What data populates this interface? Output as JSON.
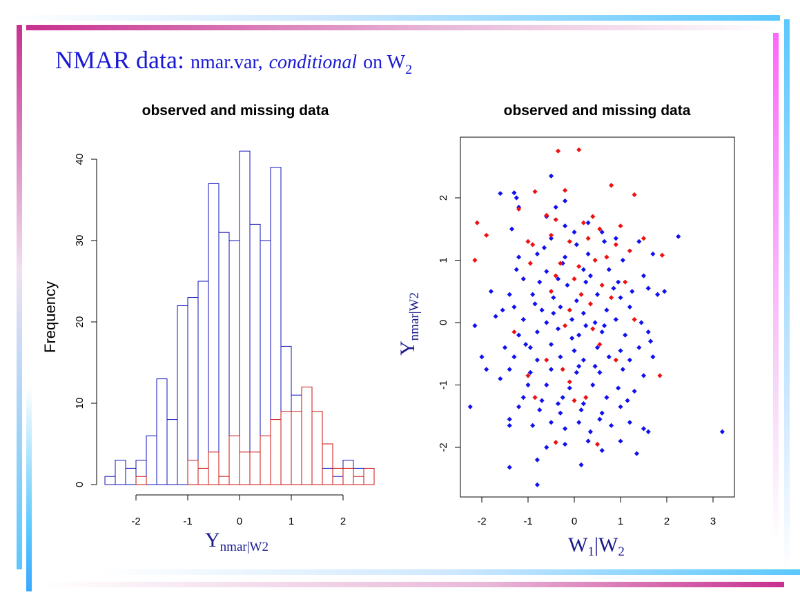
{
  "slide": {
    "title_main": "NMAR data:",
    "title_var": "nmar.var,",
    "title_cond": "conditional",
    "title_on": "on W",
    "title_sub": "2"
  },
  "colors": {
    "observed": "#1111bb",
    "missing": "#cc1111",
    "title": "#1a1ad6"
  },
  "chart_data": [
    {
      "type": "bar",
      "subtype": "histogram",
      "title": "observed and missing data",
      "ylabel": "Frequency",
      "xlabel_main": "Y",
      "xlabel_sub": "nmar|W2",
      "bin_width": 0.2,
      "xlim": [
        -2.6,
        2.6
      ],
      "ylim": [
        0,
        40
      ],
      "x_ticks": [
        "-2",
        "-1",
        "0",
        "1",
        "2"
      ],
      "y_ticks": [
        "0",
        "10",
        "20",
        "30",
        "40"
      ],
      "series": [
        {
          "name": "observed",
          "color": "#1111bb",
          "bin_starts": [
            -2.6,
            -2.4,
            -2.2,
            -2.0,
            -1.8,
            -1.6,
            -1.4,
            -1.2,
            -1.0,
            -0.8,
            -0.6,
            -0.4,
            -0.2,
            0.0,
            0.2,
            0.4,
            0.6,
            0.8,
            1.0,
            1.6,
            1.8,
            2.0,
            2.2
          ],
          "values": [
            1,
            3,
            2,
            3,
            6,
            13,
            8,
            22,
            23,
            25,
            37,
            31,
            30,
            41,
            32,
            30,
            39,
            17,
            11,
            2,
            1,
            3,
            2
          ]
        },
        {
          "name": "missing",
          "color": "#cc1111",
          "bin_starts": [
            -2.0,
            -1.0,
            -0.8,
            -0.6,
            -0.4,
            -0.2,
            0.0,
            0.2,
            0.4,
            0.6,
            0.8,
            1.0,
            1.2,
            1.4,
            1.6,
            1.8,
            2.0,
            2.2,
            2.4
          ],
          "values": [
            1,
            3,
            2,
            4,
            1,
            6,
            4,
            4,
            6,
            8,
            9,
            9,
            12,
            9,
            5,
            2,
            2,
            1,
            2
          ]
        }
      ]
    },
    {
      "type": "scatter",
      "title": "observed and missing data",
      "xlabel_main": "W",
      "xlabel_sub1": "1",
      "xlabel_bar": "|W",
      "xlabel_sub2": "2",
      "ylabel_main": "Y",
      "ylabel_sub": "nmar|W2",
      "xlim": [
        -2.5,
        3.5
      ],
      "ylim": [
        -2.8,
        2.9
      ],
      "x_ticks": [
        "-2",
        "-1",
        "0",
        "1",
        "2",
        "3"
      ],
      "y_ticks": [
        "-2",
        "-1",
        "0",
        "1",
        "2"
      ],
      "series": [
        {
          "name": "missing",
          "color": "#ee1111",
          "points": [
            [
              -0.35,
              2.75
            ],
            [
              0.1,
              2.77
            ],
            [
              -0.85,
              2.1
            ],
            [
              0.8,
              2.2
            ],
            [
              -0.2,
              2.12
            ],
            [
              1.3,
              2.05
            ],
            [
              -2.1,
              1.6
            ],
            [
              -1.9,
              1.4
            ],
            [
              -2.15,
              1.0
            ],
            [
              -1.2,
              1.82
            ],
            [
              -0.6,
              1.72
            ],
            [
              -0.4,
              1.65
            ],
            [
              0.2,
              1.6
            ],
            [
              0.4,
              1.7
            ],
            [
              0.55,
              1.5
            ],
            [
              1.0,
              1.55
            ],
            [
              -1.0,
              1.3
            ],
            [
              -0.9,
              1.25
            ],
            [
              -0.5,
              1.4
            ],
            [
              -0.1,
              1.3
            ],
            [
              0.3,
              1.35
            ],
            [
              0.9,
              1.25
            ],
            [
              1.5,
              1.35
            ],
            [
              1.9,
              1.08
            ],
            [
              1.2,
              1.15
            ],
            [
              -0.95,
              0.95
            ],
            [
              -0.3,
              0.95
            ],
            [
              0.1,
              0.9
            ],
            [
              0.45,
              1.0
            ],
            [
              0.7,
              1.05
            ],
            [
              -0.4,
              0.75
            ],
            [
              0.0,
              0.7
            ],
            [
              0.6,
              0.6
            ],
            [
              1.1,
              0.65
            ],
            [
              -0.5,
              0.5
            ],
            [
              0.15,
              0.45
            ],
            [
              0.8,
              0.4
            ],
            [
              -0.1,
              0.2
            ],
            [
              0.35,
              0.3
            ],
            [
              1.3,
              0.05
            ],
            [
              -1.3,
              -0.15
            ],
            [
              -0.2,
              -0.05
            ],
            [
              0.4,
              -0.1
            ],
            [
              -0.6,
              -0.6
            ],
            [
              -0.25,
              -0.75
            ],
            [
              0.55,
              -0.35
            ],
            [
              -1.0,
              -0.85
            ],
            [
              -0.85,
              -1.2
            ],
            [
              1.85,
              -0.85
            ],
            [
              0.0,
              -1.25
            ],
            [
              -0.4,
              -1.92
            ],
            [
              0.5,
              -1.95
            ],
            [
              0.25,
              -1.2
            ],
            [
              -0.1,
              -0.95
            ],
            [
              0.9,
              -0.6
            ]
          ]
        },
        {
          "name": "observed",
          "color": "#1111ee",
          "points": [
            [
              -0.5,
              2.35
            ],
            [
              -1.6,
              2.07
            ],
            [
              -1.3,
              2.08
            ],
            [
              -1.25,
              2.0
            ],
            [
              -0.2,
              1.95
            ],
            [
              -0.4,
              1.85
            ],
            [
              -1.2,
              1.85
            ],
            [
              -0.6,
              1.7
            ],
            [
              0.3,
              1.6
            ],
            [
              0.6,
              1.45
            ],
            [
              -1.35,
              1.5
            ],
            [
              -0.2,
              1.55
            ],
            [
              0.65,
              1.3
            ],
            [
              2.25,
              1.38
            ],
            [
              -0.5,
              1.35
            ],
            [
              0.0,
              1.45
            ],
            [
              0.9,
              1.35
            ],
            [
              1.4,
              1.3
            ],
            [
              -1.2,
              1.05
            ],
            [
              -0.8,
              1.1
            ],
            [
              -0.2,
              1.05
            ],
            [
              0.3,
              1.1
            ],
            [
              1.05,
              1.0
            ],
            [
              1.7,
              1.1
            ],
            [
              -1.25,
              0.85
            ],
            [
              -0.6,
              0.82
            ],
            [
              0.2,
              0.85
            ],
            [
              0.75,
              0.85
            ],
            [
              1.5,
              0.75
            ],
            [
              -1.8,
              0.5
            ],
            [
              -1.1,
              0.7
            ],
            [
              -0.75,
              0.65
            ],
            [
              -0.35,
              0.7
            ],
            [
              0.25,
              0.65
            ],
            [
              0.95,
              0.65
            ],
            [
              1.6,
              0.55
            ],
            [
              1.95,
              0.5
            ],
            [
              -1.4,
              0.45
            ],
            [
              -0.9,
              0.45
            ],
            [
              -0.45,
              0.4
            ],
            [
              0.05,
              0.35
            ],
            [
              0.5,
              0.45
            ],
            [
              1.0,
              0.4
            ],
            [
              1.8,
              0.45
            ],
            [
              -1.3,
              0.25
            ],
            [
              -0.7,
              0.2
            ],
            [
              -0.3,
              0.25
            ],
            [
              0.2,
              0.15
            ],
            [
              0.7,
              0.2
            ],
            [
              1.2,
              0.25
            ],
            [
              -1.7,
              0.1
            ],
            [
              -1.1,
              0.05
            ],
            [
              -0.6,
              0.0
            ],
            [
              -0.05,
              0.05
            ],
            [
              0.45,
              0.0
            ],
            [
              0.9,
              0.05
            ],
            [
              1.45,
              0.0
            ],
            [
              -2.15,
              -0.05
            ],
            [
              -1.2,
              -0.2
            ],
            [
              -0.8,
              -0.15
            ],
            [
              -0.35,
              -0.1
            ],
            [
              0.1,
              -0.2
            ],
            [
              0.6,
              -0.15
            ],
            [
              1.1,
              -0.2
            ],
            [
              1.6,
              -0.15
            ],
            [
              -1.5,
              -0.4
            ],
            [
              -0.95,
              -0.4
            ],
            [
              -0.5,
              -0.35
            ],
            [
              0.0,
              -0.45
            ],
            [
              0.5,
              -0.4
            ],
            [
              1.0,
              -0.45
            ],
            [
              1.4,
              -0.4
            ],
            [
              -2.0,
              -0.55
            ],
            [
              -1.3,
              -0.55
            ],
            [
              -0.8,
              -0.6
            ],
            [
              -0.3,
              -0.55
            ],
            [
              0.2,
              -0.6
            ],
            [
              0.75,
              -0.55
            ],
            [
              1.2,
              -0.6
            ],
            [
              1.7,
              -0.55
            ],
            [
              -1.9,
              -0.75
            ],
            [
              -1.4,
              -0.75
            ],
            [
              -0.95,
              -0.8
            ],
            [
              -0.5,
              -0.75
            ],
            [
              0.05,
              -0.8
            ],
            [
              0.55,
              -0.8
            ],
            [
              1.05,
              -0.75
            ],
            [
              1.5,
              -0.85
            ],
            [
              -1.6,
              -0.9
            ],
            [
              -1.0,
              -1.0
            ],
            [
              -0.6,
              -1.0
            ],
            [
              -0.1,
              -1.05
            ],
            [
              0.4,
              -1.0
            ],
            [
              0.95,
              -1.05
            ],
            [
              1.3,
              -1.1
            ],
            [
              -1.1,
              -1.2
            ],
            [
              -0.7,
              -1.25
            ],
            [
              -0.25,
              -1.2
            ],
            [
              0.2,
              -1.3
            ],
            [
              0.7,
              -1.2
            ],
            [
              1.15,
              -1.25
            ],
            [
              -2.25,
              -1.35
            ],
            [
              -1.2,
              -1.35
            ],
            [
              -0.75,
              -1.4
            ],
            [
              -0.3,
              -1.45
            ],
            [
              0.15,
              -1.4
            ],
            [
              0.6,
              -1.45
            ],
            [
              1.0,
              -1.35
            ],
            [
              -1.4,
              -1.55
            ],
            [
              -0.5,
              -1.6
            ],
            [
              0.1,
              -1.6
            ],
            [
              0.55,
              -1.55
            ],
            [
              1.2,
              -1.6
            ],
            [
              1.5,
              -1.7
            ],
            [
              -1.4,
              -1.65
            ],
            [
              -0.9,
              -1.65
            ],
            [
              -0.2,
              -1.7
            ],
            [
              0.35,
              -1.75
            ],
            [
              0.8,
              -1.65
            ],
            [
              1.6,
              -1.75
            ],
            [
              3.2,
              -1.75
            ],
            [
              -0.2,
              -1.95
            ],
            [
              0.3,
              -1.9
            ],
            [
              1.0,
              -1.9
            ],
            [
              -0.6,
              -2.0
            ],
            [
              0.6,
              -2.05
            ],
            [
              1.35,
              -2.1
            ],
            [
              -0.8,
              -2.2
            ],
            [
              0.15,
              -2.28
            ],
            [
              -1.4,
              -2.32
            ],
            [
              -0.8,
              -2.6
            ],
            [
              -0.15,
              0.6
            ],
            [
              0.35,
              0.75
            ],
            [
              -0.05,
              -0.25
            ],
            [
              0.25,
              -0.05
            ],
            [
              -0.45,
              0.15
            ],
            [
              0.65,
              -0.05
            ],
            [
              -0.85,
              0.3
            ],
            [
              0.85,
              0.55
            ],
            [
              -0.25,
              0.95
            ],
            [
              0.45,
              -0.7
            ],
            [
              -0.35,
              -1.3
            ],
            [
              0.05,
              1.25
            ],
            [
              1.25,
              0.5
            ],
            [
              -1.05,
              -0.35
            ],
            [
              1.65,
              -0.3
            ],
            [
              -1.55,
              0.2
            ],
            [
              0.1,
              -0.7
            ],
            [
              -0.65,
              1.2
            ]
          ]
        }
      ]
    }
  ]
}
